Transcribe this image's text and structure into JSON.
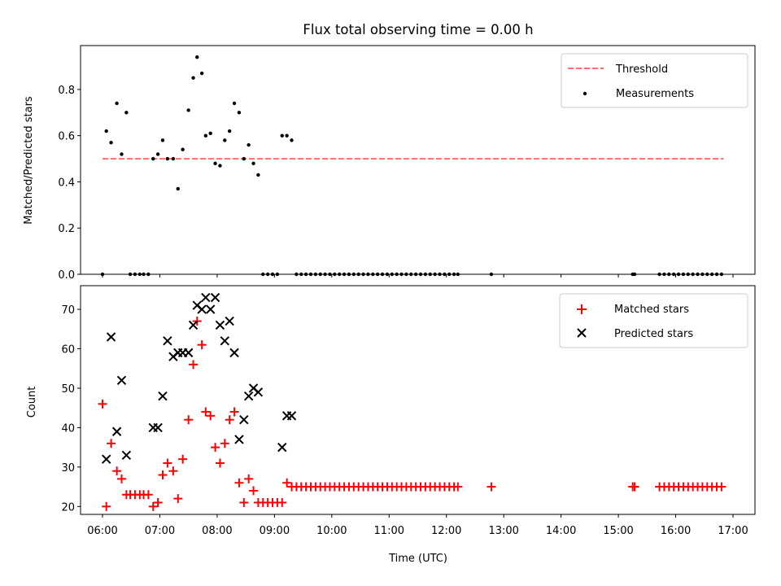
{
  "figure_title": "Flux total observing time = 0.00 h",
  "chart_data": [
    {
      "type": "scatter",
      "panel": "top",
      "ylabel": "Matched/Predicted stars",
      "xlabel": "",
      "xlim": [
        "05:37",
        "17:23"
      ],
      "ylim": [
        0,
        0.99
      ],
      "yticks": [
        0.0,
        0.2,
        0.4,
        0.6,
        0.8
      ],
      "ytick_labels": [
        "0.0",
        "0.2",
        "0.4",
        "0.6",
        "0.8"
      ],
      "legend_position": "top-right",
      "colors": {
        "threshold": "#ff6e6e",
        "measurements": "#000000"
      },
      "threshold": {
        "name": "Threshold",
        "value": 0.5,
        "x": [
          "06:00",
          "16:50"
        ]
      },
      "series": [
        {
          "name": "Measurements",
          "points": [
            [
              "06:00",
              0.0
            ],
            [
              "06:04",
              0.62
            ],
            [
              "06:09",
              0.57
            ],
            [
              "06:15",
              0.74
            ],
            [
              "06:20",
              0.52
            ],
            [
              "06:25",
              0.7
            ],
            [
              "06:29",
              0.0
            ],
            [
              "06:34",
              0.0
            ],
            [
              "06:39",
              0.0
            ],
            [
              "06:43",
              0.0
            ],
            [
              "06:48",
              0.0
            ],
            [
              "06:53",
              0.5
            ],
            [
              "06:58",
              0.52
            ],
            [
              "07:03",
              0.58
            ],
            [
              "07:08",
              0.5
            ],
            [
              "07:14",
              0.5
            ],
            [
              "07:19",
              0.37
            ],
            [
              "07:24",
              0.54
            ],
            [
              "07:30",
              0.71
            ],
            [
              "07:35",
              0.85
            ],
            [
              "07:39",
              0.94
            ],
            [
              "07:44",
              0.87
            ],
            [
              "07:48",
              0.6
            ],
            [
              "07:53",
              0.61
            ],
            [
              "07:58",
              0.48
            ],
            [
              "08:03",
              0.47
            ],
            [
              "08:08",
              0.58
            ],
            [
              "08:13",
              0.62
            ],
            [
              "08:18",
              0.74
            ],
            [
              "08:23",
              0.7
            ],
            [
              "08:28",
              0.5
            ],
            [
              "08:33",
              0.56
            ],
            [
              "08:38",
              0.48
            ],
            [
              "08:43",
              0.43
            ],
            [
              "08:48",
              0.0
            ],
            [
              "08:53",
              0.0
            ],
            [
              "08:58",
              0.0
            ],
            [
              "09:03",
              0.0
            ],
            [
              "09:08",
              0.6
            ],
            [
              "09:13",
              0.6
            ],
            [
              "09:18",
              0.58
            ],
            [
              "09:23",
              0.0
            ],
            [
              "09:28",
              0.0
            ],
            [
              "09:33",
              0.0
            ],
            [
              "09:38",
              0.0
            ],
            [
              "09:43",
              0.0
            ],
            [
              "09:48",
              0.0
            ],
            [
              "09:53",
              0.0
            ],
            [
              "09:58",
              0.0
            ],
            [
              "10:03",
              0.0
            ],
            [
              "10:08",
              0.0
            ],
            [
              "10:13",
              0.0
            ],
            [
              "10:18",
              0.0
            ],
            [
              "10:23",
              0.0
            ],
            [
              "10:28",
              0.0
            ],
            [
              "10:33",
              0.0
            ],
            [
              "10:38",
              0.0
            ],
            [
              "10:43",
              0.0
            ],
            [
              "10:48",
              0.0
            ],
            [
              "10:53",
              0.0
            ],
            [
              "10:58",
              0.0
            ],
            [
              "11:03",
              0.0
            ],
            [
              "11:08",
              0.0
            ],
            [
              "11:13",
              0.0
            ],
            [
              "11:18",
              0.0
            ],
            [
              "11:23",
              0.0
            ],
            [
              "11:28",
              0.0
            ],
            [
              "11:33",
              0.0
            ],
            [
              "11:38",
              0.0
            ],
            [
              "11:43",
              0.0
            ],
            [
              "11:48",
              0.0
            ],
            [
              "11:53",
              0.0
            ],
            [
              "11:58",
              0.0
            ],
            [
              "12:03",
              0.0
            ],
            [
              "12:08",
              0.0
            ],
            [
              "12:12",
              0.0
            ],
            [
              "12:47",
              0.0
            ],
            [
              "15:15",
              0.0
            ],
            [
              "15:17",
              0.0
            ],
            [
              "15:43",
              0.0
            ],
            [
              "15:48",
              0.0
            ],
            [
              "15:53",
              0.0
            ],
            [
              "15:58",
              0.0
            ],
            [
              "16:03",
              0.0
            ],
            [
              "16:08",
              0.0
            ],
            [
              "16:13",
              0.0
            ],
            [
              "16:18",
              0.0
            ],
            [
              "16:23",
              0.0
            ],
            [
              "16:28",
              0.0
            ],
            [
              "16:33",
              0.0
            ],
            [
              "16:38",
              0.0
            ],
            [
              "16:43",
              0.0
            ],
            [
              "16:48",
              0.0
            ]
          ]
        }
      ]
    },
    {
      "type": "scatter",
      "panel": "bottom",
      "ylabel": "Count",
      "xlabel": "Time (UTC)",
      "xlim": [
        "05:37",
        "17:23"
      ],
      "ylim": [
        18,
        76
      ],
      "yticks": [
        20,
        30,
        40,
        50,
        60,
        70
      ],
      "ytick_labels": [
        "20",
        "30",
        "40",
        "50",
        "60",
        "70"
      ],
      "xticks": [
        "06:00",
        "07:00",
        "08:00",
        "09:00",
        "10:00",
        "11:00",
        "12:00",
        "13:00",
        "14:00",
        "15:00",
        "16:00",
        "17:00"
      ],
      "legend_position": "top-right",
      "colors": {
        "matched": "#ff0000",
        "predicted": "#000000"
      },
      "series": [
        {
          "name": "Matched stars",
          "marker": "plus",
          "points": [
            [
              "06:00",
              46
            ],
            [
              "06:04",
              20
            ],
            [
              "06:09",
              36
            ],
            [
              "06:15",
              29
            ],
            [
              "06:20",
              27
            ],
            [
              "06:25",
              23
            ],
            [
              "06:29",
              23
            ],
            [
              "06:34",
              23
            ],
            [
              "06:39",
              23
            ],
            [
              "06:43",
              23
            ],
            [
              "06:48",
              23
            ],
            [
              "06:53",
              20
            ],
            [
              "06:58",
              21
            ],
            [
              "07:03",
              28
            ],
            [
              "07:08",
              31
            ],
            [
              "07:14",
              29
            ],
            [
              "07:19",
              22
            ],
            [
              "07:24",
              32
            ],
            [
              "07:30",
              42
            ],
            [
              "07:35",
              56
            ],
            [
              "07:39",
              67
            ],
            [
              "07:44",
              61
            ],
            [
              "07:48",
              44
            ],
            [
              "07:53",
              43
            ],
            [
              "07:58",
              35
            ],
            [
              "08:03",
              31
            ],
            [
              "08:08",
              36
            ],
            [
              "08:13",
              42
            ],
            [
              "08:18",
              44
            ],
            [
              "08:23",
              26
            ],
            [
              "08:28",
              21
            ],
            [
              "08:33",
              27
            ],
            [
              "08:38",
              24
            ],
            [
              "08:43",
              21
            ],
            [
              "08:48",
              21
            ],
            [
              "08:53",
              21
            ],
            [
              "08:58",
              21
            ],
            [
              "09:03",
              21
            ],
            [
              "09:08",
              21
            ],
            [
              "09:13",
              26
            ],
            [
              "09:18",
              25
            ],
            [
              "09:23",
              25
            ],
            [
              "09:28",
              25
            ],
            [
              "09:33",
              25
            ],
            [
              "09:38",
              25
            ],
            [
              "09:43",
              25
            ],
            [
              "09:48",
              25
            ],
            [
              "09:53",
              25
            ],
            [
              "09:58",
              25
            ],
            [
              "10:03",
              25
            ],
            [
              "10:08",
              25
            ],
            [
              "10:13",
              25
            ],
            [
              "10:18",
              25
            ],
            [
              "10:23",
              25
            ],
            [
              "10:28",
              25
            ],
            [
              "10:33",
              25
            ],
            [
              "10:38",
              25
            ],
            [
              "10:43",
              25
            ],
            [
              "10:48",
              25
            ],
            [
              "10:53",
              25
            ],
            [
              "10:58",
              25
            ],
            [
              "11:03",
              25
            ],
            [
              "11:08",
              25
            ],
            [
              "11:13",
              25
            ],
            [
              "11:18",
              25
            ],
            [
              "11:23",
              25
            ],
            [
              "11:28",
              25
            ],
            [
              "11:33",
              25
            ],
            [
              "11:38",
              25
            ],
            [
              "11:43",
              25
            ],
            [
              "11:48",
              25
            ],
            [
              "11:53",
              25
            ],
            [
              "11:58",
              25
            ],
            [
              "12:03",
              25
            ],
            [
              "12:08",
              25
            ],
            [
              "12:12",
              25
            ],
            [
              "12:47",
              25
            ],
            [
              "15:15",
              25
            ],
            [
              "15:17",
              25
            ],
            [
              "15:43",
              25
            ],
            [
              "15:48",
              25
            ],
            [
              "15:53",
              25
            ],
            [
              "15:58",
              25
            ],
            [
              "16:03",
              25
            ],
            [
              "16:08",
              25
            ],
            [
              "16:13",
              25
            ],
            [
              "16:18",
              25
            ],
            [
              "16:23",
              25
            ],
            [
              "16:28",
              25
            ],
            [
              "16:33",
              25
            ],
            [
              "16:38",
              25
            ],
            [
              "16:43",
              25
            ],
            [
              "16:48",
              25
            ]
          ]
        },
        {
          "name": "Predicted stars",
          "marker": "x",
          "points": [
            [
              "06:04",
              32
            ],
            [
              "06:09",
              63
            ],
            [
              "06:15",
              39
            ],
            [
              "06:20",
              52
            ],
            [
              "06:25",
              33
            ],
            [
              "06:53",
              40
            ],
            [
              "06:58",
              40
            ],
            [
              "07:03",
              48
            ],
            [
              "07:08",
              62
            ],
            [
              "07:14",
              58
            ],
            [
              "07:19",
              59
            ],
            [
              "07:24",
              59
            ],
            [
              "07:30",
              59
            ],
            [
              "07:35",
              66
            ],
            [
              "07:39",
              71
            ],
            [
              "07:44",
              70
            ],
            [
              "07:48",
              73
            ],
            [
              "07:53",
              70
            ],
            [
              "07:58",
              73
            ],
            [
              "08:03",
              66
            ],
            [
              "08:08",
              62
            ],
            [
              "08:13",
              67
            ],
            [
              "08:18",
              59
            ],
            [
              "08:23",
              37
            ],
            [
              "08:28",
              42
            ],
            [
              "08:33",
              48
            ],
            [
              "08:38",
              50
            ],
            [
              "08:43",
              49
            ],
            [
              "09:08",
              35
            ],
            [
              "09:13",
              43
            ],
            [
              "09:18",
              43
            ]
          ]
        }
      ]
    }
  ]
}
